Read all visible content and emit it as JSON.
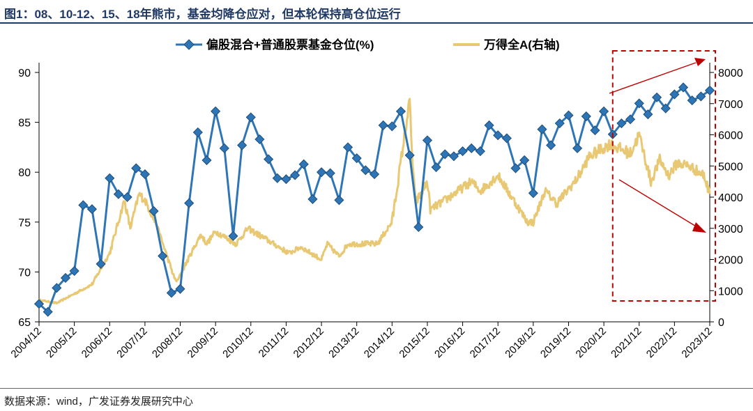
{
  "figure_title": "图1：08、10-12、15、18年熊市，基金均降仓应对，但本轮保持高仓位运行",
  "source_note": "数据来源：wind，广发证券发展研究中心",
  "colors": {
    "fund": "#2E75B6",
    "index": "#E8C872",
    "title": "#1F3864",
    "annotation": "#C00000"
  },
  "chart_data": {
    "type": "line",
    "title": "",
    "x_tick_labels": [
      "2004/12",
      "2005/12",
      "2006/12",
      "2007/12",
      "2008/12",
      "2009/12",
      "2010/12",
      "2011/12",
      "2012/12",
      "2013/12",
      "2014/12",
      "2015/12",
      "2016/12",
      "2017/12",
      "2018/12",
      "2019/12",
      "2020/12",
      "2021/12",
      "2022/12",
      "2023/12"
    ],
    "y_left": {
      "ticks": [
        65,
        70,
        75,
        80,
        85,
        90
      ],
      "range": [
        65,
        90
      ]
    },
    "y_right": {
      "ticks": [
        0,
        1000,
        2000,
        3000,
        4000,
        5000,
        6000,
        7000,
        8000
      ],
      "range": [
        0,
        8000
      ]
    },
    "legend_placement": "top",
    "series": [
      {
        "name": "偏股混合+普通股票基金仓位(%)",
        "axis": "left",
        "marker": "diamond",
        "frequency": "quarterly",
        "x": [
          "2004/12",
          "2005/03",
          "2005/06",
          "2005/09",
          "2005/12",
          "2006/03",
          "2006/06",
          "2006/09",
          "2006/12",
          "2007/03",
          "2007/06",
          "2007/09",
          "2007/12",
          "2008/03",
          "2008/06",
          "2008/09",
          "2008/12",
          "2009/03",
          "2009/06",
          "2009/09",
          "2009/12",
          "2010/03",
          "2010/06",
          "2010/09",
          "2010/12",
          "2011/03",
          "2011/06",
          "2011/09",
          "2011/12",
          "2012/03",
          "2012/06",
          "2012/09",
          "2012/12",
          "2013/03",
          "2013/06",
          "2013/09",
          "2013/12",
          "2014/03",
          "2014/06",
          "2014/09",
          "2014/12",
          "2015/03",
          "2015/06",
          "2015/09",
          "2015/12",
          "2016/03",
          "2016/06",
          "2016/09",
          "2016/12",
          "2017/03",
          "2017/06",
          "2017/09",
          "2017/12",
          "2018/03",
          "2018/06",
          "2018/09",
          "2018/12",
          "2019/03",
          "2019/06",
          "2019/09",
          "2019/12",
          "2020/03",
          "2020/06",
          "2020/09",
          "2020/12",
          "2021/03",
          "2021/06",
          "2021/09",
          "2021/12",
          "2022/03",
          "2022/06",
          "2022/09",
          "2022/12",
          "2023/03",
          "2023/06",
          "2023/09",
          "2023/12"
        ],
        "values": [
          66.8,
          66.0,
          68.4,
          69.4,
          70.1,
          76.7,
          76.3,
          70.8,
          79.4,
          77.8,
          77.5,
          80.4,
          79.8,
          76.1,
          71.6,
          67.9,
          68.3,
          76.9,
          84.0,
          81.2,
          86.1,
          82.4,
          73.6,
          82.7,
          85.5,
          83.3,
          81.3,
          79.4,
          79.3,
          79.7,
          80.8,
          77.3,
          80.0,
          79.9,
          77.2,
          82.5,
          81.4,
          80.2,
          79.8,
          84.7,
          84.6,
          86.1,
          81.7,
          74.5,
          83.2,
          80.5,
          81.8,
          81.6,
          82.1,
          82.4,
          82.1,
          84.7,
          83.7,
          83.4,
          80.4,
          81.2,
          77.9,
          84.3,
          82.7,
          84.9,
          85.7,
          82.4,
          85.6,
          84.2,
          86.1,
          83.8,
          84.9,
          85.3,
          86.9,
          85.8,
          87.5,
          86.4,
          87.8,
          88.5,
          87.2,
          87.6,
          88.2
        ]
      },
      {
        "name": "万得全A(右轴)",
        "axis": "right",
        "marker": "none",
        "frequency": "weekly",
        "anchors_x": [
          "2004/12",
          "2005/06",
          "2005/12",
          "2006/06",
          "2006/12",
          "2007/05",
          "2007/07",
          "2007/10",
          "2007/12",
          "2008/04",
          "2008/10",
          "2008/11",
          "2009/01",
          "2009/07",
          "2009/09",
          "2009/12",
          "2010/07",
          "2010/11",
          "2011/06",
          "2012/01",
          "2012/05",
          "2012/12",
          "2013/02",
          "2013/06",
          "2013/09",
          "2014/07",
          "2014/12",
          "2015/06",
          "2015/07",
          "2015/08",
          "2015/12",
          "2016/01",
          "2016/06",
          "2017/03",
          "2017/06",
          "2017/12",
          "2018/06",
          "2018/10",
          "2018/12",
          "2019/04",
          "2019/08",
          "2020/03",
          "2020/07",
          "2021/02",
          "2021/09",
          "2021/12",
          "2022/04",
          "2022/07",
          "2022/10",
          "2023/01",
          "2023/05",
          "2023/10",
          "2023/12"
        ],
        "anchors_y": [
          700,
          600,
          900,
          1200,
          2200,
          3900,
          3000,
          4100,
          3900,
          3100,
          1400,
          1300,
          1700,
          2800,
          2500,
          2900,
          2500,
          3000,
          2600,
          2200,
          2400,
          2000,
          2500,
          2100,
          2500,
          2500,
          3200,
          7100,
          5000,
          3800,
          4500,
          3600,
          3900,
          4500,
          4200,
          4700,
          3800,
          3200,
          3200,
          4200,
          3800,
          4600,
          5300,
          5700,
          5400,
          6000,
          4500,
          5200,
          4700,
          5100,
          5000,
          4700,
          4100
        ]
      }
    ]
  },
  "annotations": {
    "highlight_box": "dashed red box over the latest period",
    "arrows": [
      "up-right",
      "down-right"
    ]
  }
}
